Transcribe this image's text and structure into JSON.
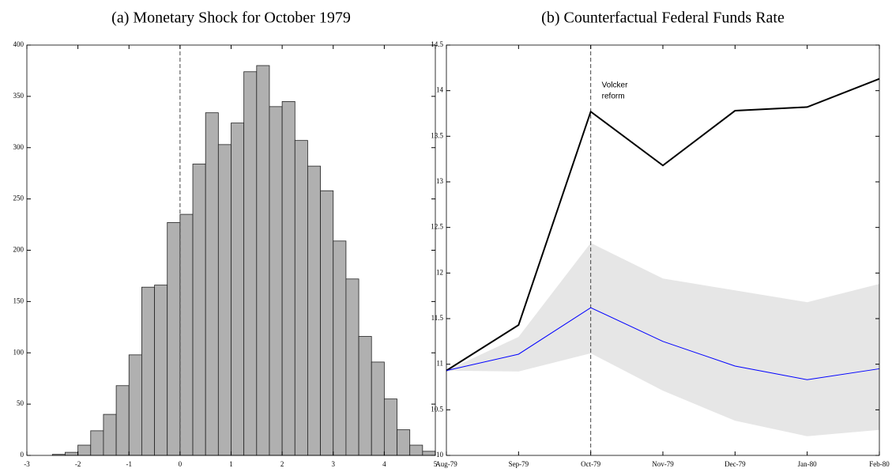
{
  "chart_data": [
    {
      "type": "histogram",
      "title": "(a) Monetary Shock for October 1979",
      "bins": [
        -2.5,
        -2.25,
        -2,
        -1.75,
        -1.5,
        -1.25,
        -1,
        -0.75,
        -0.5,
        -0.25,
        0,
        0.25,
        0.5,
        0.75,
        1,
        1.25,
        1.5,
        1.75,
        2,
        2.25,
        2.5,
        2.75,
        3,
        3.25,
        3.5,
        3.75,
        4,
        4.25,
        4.5,
        4.75,
        5
      ],
      "values": [
        1,
        3,
        10,
        24,
        40,
        68,
        98,
        164,
        166,
        227,
        235,
        284,
        334,
        303,
        324,
        374,
        380,
        340,
        345,
        307,
        282,
        258,
        209,
        172,
        116,
        91,
        55,
        25,
        10,
        4
      ],
      "color": "#b0b0b0",
      "vline": 0,
      "xlim": [
        -3,
        5
      ],
      "xticks": [
        -3,
        -2,
        -1,
        0,
        1,
        2,
        3,
        4,
        5
      ],
      "ylim": [
        0,
        400
      ],
      "yticks": [
        0,
        50,
        100,
        150,
        200,
        250,
        300,
        350,
        400
      ]
    },
    {
      "type": "line",
      "title": "(b) Counterfactual Federal Funds Rate",
      "categories": [
        "Aug-79",
        "Sep-79",
        "Oct-79",
        "Nov-79",
        "Dec-79",
        "Jan-80",
        "Feb-80"
      ],
      "series": [
        {
          "color": "#000000",
          "values": [
            10.93,
            11.43,
            13.77,
            13.18,
            13.78,
            13.82,
            14.13
          ]
        },
        {
          "color": "#0000ff",
          "values": [
            10.93,
            11.11,
            11.62,
            11.25,
            10.98,
            10.83,
            10.95
          ]
        }
      ],
      "band": {
        "color": "#e6e6e6",
        "upper": [
          10.93,
          11.3,
          12.33,
          11.94,
          11.81,
          11.68,
          11.88
        ],
        "lower": [
          10.93,
          10.92,
          11.12,
          10.71,
          10.38,
          10.21,
          10.28
        ]
      },
      "vline": "Oct-79",
      "annotation": [
        "Volcker",
        "reform"
      ],
      "ylim": [
        10,
        14.5
      ],
      "yticks": [
        10,
        10.5,
        11,
        11.5,
        12,
        12.5,
        13,
        13.5,
        14,
        14.5
      ]
    }
  ]
}
